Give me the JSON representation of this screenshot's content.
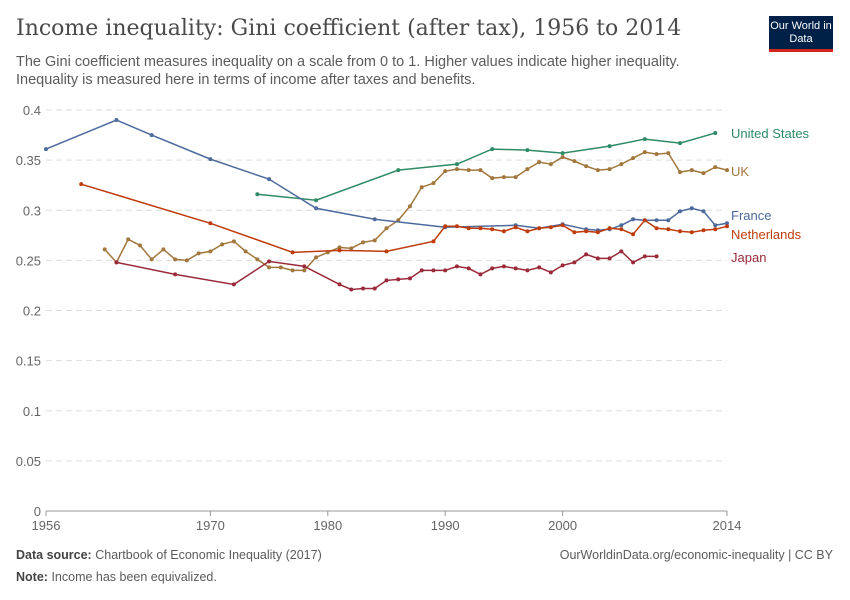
{
  "title": "Income inequality: Gini coefficient (after tax), 1956 to 2014",
  "subtitle": "The Gini coefficient measures inequality on a scale from 0 to 1. Higher values indicate higher inequality. Inequality is measured here in terms of income after taxes and benefits.",
  "logo": "Our World in Data",
  "footer": {
    "source_label": "Data source:",
    "source": "Chartbook of Economic Inequality (2017)",
    "url": "OurWorldinData.org/economic-inequality | CC BY",
    "note_label": "Note:",
    "note": "Income has been equivalized."
  },
  "chart_data": {
    "type": "line",
    "xlim": [
      1956,
      2014
    ],
    "ylim": [
      0,
      0.4
    ],
    "grid": "horizontal dashed",
    "legend": "right end labels",
    "xticks": [
      "1956",
      "1970",
      "1980",
      "1990",
      "2000",
      "2014"
    ],
    "xtick_values": [
      1956,
      1970,
      1980,
      1990,
      2000,
      2014
    ],
    "yticks": [
      "0",
      "0.05",
      "0.1",
      "0.15",
      "0.2",
      "0.25",
      "0.3",
      "0.35",
      "0.4"
    ],
    "ytick_values": [
      0,
      0.05,
      0.1,
      0.15,
      0.2,
      0.25,
      0.3,
      0.35,
      0.4
    ],
    "series": [
      {
        "name": "United States",
        "color": "#2e8b66",
        "points": [
          [
            1974,
            0.316
          ],
          [
            1979,
            0.31
          ],
          [
            1986,
            0.34
          ],
          [
            1991,
            0.346
          ],
          [
            1994,
            0.361
          ],
          [
            1997,
            0.36
          ],
          [
            2000,
            0.357
          ],
          [
            2004,
            0.364
          ],
          [
            2007,
            0.371
          ],
          [
            2010,
            0.367
          ],
          [
            2013,
            0.377
          ]
        ]
      },
      {
        "name": "UK",
        "color": "#a2773d",
        "points": [
          [
            1961,
            0.261
          ],
          [
            1962,
            0.248
          ],
          [
            1963,
            0.271
          ],
          [
            1964,
            0.265
          ],
          [
            1965,
            0.251
          ],
          [
            1966,
            0.261
          ],
          [
            1967,
            0.251
          ],
          [
            1968,
            0.25
          ],
          [
            1969,
            0.257
          ],
          [
            1970,
            0.259
          ],
          [
            1971,
            0.266
          ],
          [
            1972,
            0.269
          ],
          [
            1973,
            0.259
          ],
          [
            1974,
            0.251
          ],
          [
            1975,
            0.243
          ],
          [
            1976,
            0.243
          ],
          [
            1977,
            0.24
          ],
          [
            1978,
            0.24
          ],
          [
            1979,
            0.253
          ],
          [
            1980,
            0.258
          ],
          [
            1981,
            0.263
          ],
          [
            1982,
            0.262
          ],
          [
            1983,
            0.268
          ],
          [
            1984,
            0.27
          ],
          [
            1985,
            0.282
          ],
          [
            1986,
            0.29
          ],
          [
            1987,
            0.304
          ],
          [
            1988,
            0.323
          ],
          [
            1989,
            0.327
          ],
          [
            1990,
            0.339
          ],
          [
            1991,
            0.341
          ],
          [
            1992,
            0.34
          ],
          [
            1993,
            0.34
          ],
          [
            1994,
            0.332
          ],
          [
            1995,
            0.333
          ],
          [
            1996,
            0.333
          ],
          [
            1997,
            0.341
          ],
          [
            1998,
            0.348
          ],
          [
            1999,
            0.346
          ],
          [
            2000,
            0.353
          ],
          [
            2001,
            0.349
          ],
          [
            2002,
            0.344
          ],
          [
            2003,
            0.34
          ],
          [
            2004,
            0.341
          ],
          [
            2005,
            0.346
          ],
          [
            2006,
            0.352
          ],
          [
            2007,
            0.358
          ],
          [
            2008,
            0.356
          ],
          [
            2009,
            0.357
          ],
          [
            2010,
            0.338
          ],
          [
            2011,
            0.34
          ],
          [
            2012,
            0.337
          ],
          [
            2013,
            0.343
          ],
          [
            2014,
            0.34
          ]
        ]
      },
      {
        "name": "France",
        "color": "#4c6a9c",
        "points": [
          [
            1956,
            0.361
          ],
          [
            1962,
            0.39
          ],
          [
            1965,
            0.375
          ],
          [
            1970,
            0.351
          ],
          [
            1975,
            0.331
          ],
          [
            1979,
            0.302
          ],
          [
            1984,
            0.291
          ],
          [
            1990,
            0.283
          ],
          [
            1996,
            0.285
          ],
          [
            1998,
            0.282
          ],
          [
            2000,
            0.286
          ],
          [
            2002,
            0.281
          ],
          [
            2003,
            0.28
          ],
          [
            2004,
            0.281
          ],
          [
            2005,
            0.285
          ],
          [
            2006,
            0.291
          ],
          [
            2007,
            0.29
          ],
          [
            2008,
            0.29
          ],
          [
            2009,
            0.29
          ],
          [
            2010,
            0.299
          ],
          [
            2011,
            0.302
          ],
          [
            2012,
            0.299
          ],
          [
            2013,
            0.285
          ],
          [
            2014,
            0.287
          ]
        ]
      },
      {
        "name": "Netherlands",
        "color": "#be3c0c",
        "points": [
          [
            1959,
            0.326
          ],
          [
            1970,
            0.287
          ],
          [
            1977,
            0.258
          ],
          [
            1981,
            0.26
          ],
          [
            1985,
            0.259
          ],
          [
            1989,
            0.269
          ],
          [
            1990,
            0.284
          ],
          [
            1991,
            0.284
          ],
          [
            1992,
            0.282
          ],
          [
            1993,
            0.282
          ],
          [
            1994,
            0.281
          ],
          [
            1995,
            0.279
          ],
          [
            1996,
            0.283
          ],
          [
            1997,
            0.279
          ],
          [
            1998,
            0.282
          ],
          [
            1999,
            0.283
          ],
          [
            2000,
            0.285
          ],
          [
            2001,
            0.278
          ],
          [
            2002,
            0.279
          ],
          [
            2003,
            0.278
          ],
          [
            2004,
            0.282
          ],
          [
            2005,
            0.281
          ],
          [
            2006,
            0.276
          ],
          [
            2007,
            0.29
          ],
          [
            2008,
            0.282
          ],
          [
            2009,
            0.281
          ],
          [
            2010,
            0.279
          ],
          [
            2011,
            0.278
          ],
          [
            2012,
            0.28
          ],
          [
            2013,
            0.281
          ],
          [
            2014,
            0.284
          ]
        ]
      },
      {
        "name": "Japan",
        "color": "#9a2a3a",
        "points": [
          [
            1962,
            0.248
          ],
          [
            1967,
            0.236
          ],
          [
            1972,
            0.226
          ],
          [
            1975,
            0.249
          ],
          [
            1978,
            0.244
          ],
          [
            1981,
            0.226
          ],
          [
            1982,
            0.221
          ],
          [
            1983,
            0.222
          ],
          [
            1984,
            0.222
          ],
          [
            1985,
            0.23
          ],
          [
            1986,
            0.231
          ],
          [
            1987,
            0.232
          ],
          [
            1988,
            0.24
          ],
          [
            1989,
            0.24
          ],
          [
            1990,
            0.24
          ],
          [
            1991,
            0.244
          ],
          [
            1992,
            0.242
          ],
          [
            1993,
            0.236
          ],
          [
            1994,
            0.242
          ],
          [
            1995,
            0.244
          ],
          [
            1996,
            0.242
          ],
          [
            1997,
            0.24
          ],
          [
            1998,
            0.243
          ],
          [
            1999,
            0.238
          ],
          [
            2000,
            0.245
          ],
          [
            2001,
            0.248
          ],
          [
            2002,
            0.256
          ],
          [
            2003,
            0.252
          ],
          [
            2004,
            0.252
          ],
          [
            2005,
            0.259
          ],
          [
            2006,
            0.248
          ],
          [
            2007,
            0.254
          ],
          [
            2008,
            0.254
          ]
        ]
      }
    ]
  }
}
